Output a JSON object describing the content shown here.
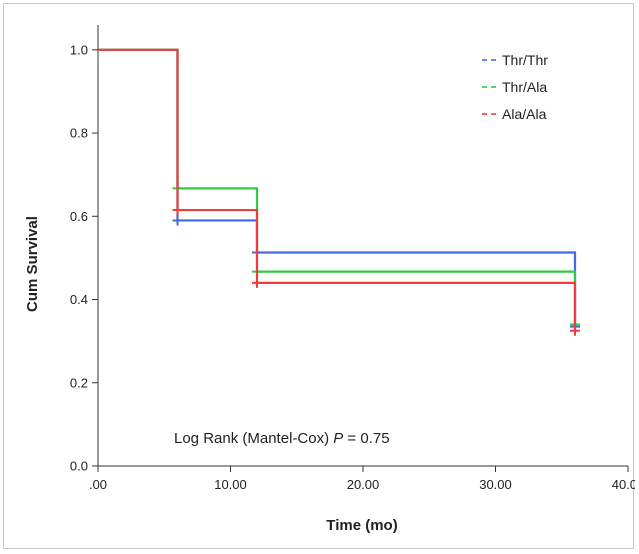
{
  "chart_data": {
    "type": "line",
    "subtype": "step",
    "title": "",
    "xlabel": "Time (mo)",
    "ylabel": "Cum Survival",
    "xlim": [
      0,
      40
    ],
    "ylim": [
      0,
      1.05
    ],
    "x_ticks": [
      0,
      10,
      20,
      30,
      40
    ],
    "x_tick_labels": [
      ".00",
      "10.00",
      "20.00",
      "30.00",
      "40.00"
    ],
    "y_ticks": [
      0,
      0.2,
      0.4,
      0.6,
      0.8,
      1.0
    ],
    "y_tick_labels": [
      "0.0",
      "0.2",
      "0.4",
      "0.6",
      "0.8",
      "1.0"
    ],
    "grid": false,
    "legend_position": "top-right",
    "series": [
      {
        "name": "Thr/Thr",
        "color": "#4169e1",
        "steps": [
          [
            0,
            1.0
          ],
          [
            6,
            0.59
          ],
          [
            12,
            0.513
          ],
          [
            36,
            0.335
          ]
        ],
        "censored": [
          [
            6,
            0.59
          ],
          [
            12,
            0.513
          ],
          [
            36,
            0.335
          ]
        ]
      },
      {
        "name": "Thr/Ala",
        "color": "#2ecc40",
        "steps": [
          [
            0,
            1.0
          ],
          [
            6,
            0.667
          ],
          [
            12,
            0.467
          ],
          [
            36,
            0.34
          ]
        ],
        "censored": [
          [
            6,
            0.667
          ],
          [
            12,
            0.467
          ],
          [
            36,
            0.34
          ]
        ]
      },
      {
        "name": "Ala/Ala",
        "color": "#f03c3c",
        "steps": [
          [
            0,
            1.0
          ],
          [
            6,
            0.615
          ],
          [
            12,
            0.44
          ],
          [
            36,
            0.325
          ]
        ],
        "censored": [
          [
            6,
            0.615
          ],
          [
            12,
            0.44
          ],
          [
            36,
            0.325
          ]
        ]
      }
    ],
    "annotation": {
      "prefix": "Log Rank (Mantel-Cox) ",
      "p_symbol": "P",
      "suffix": " = 0.75"
    }
  }
}
